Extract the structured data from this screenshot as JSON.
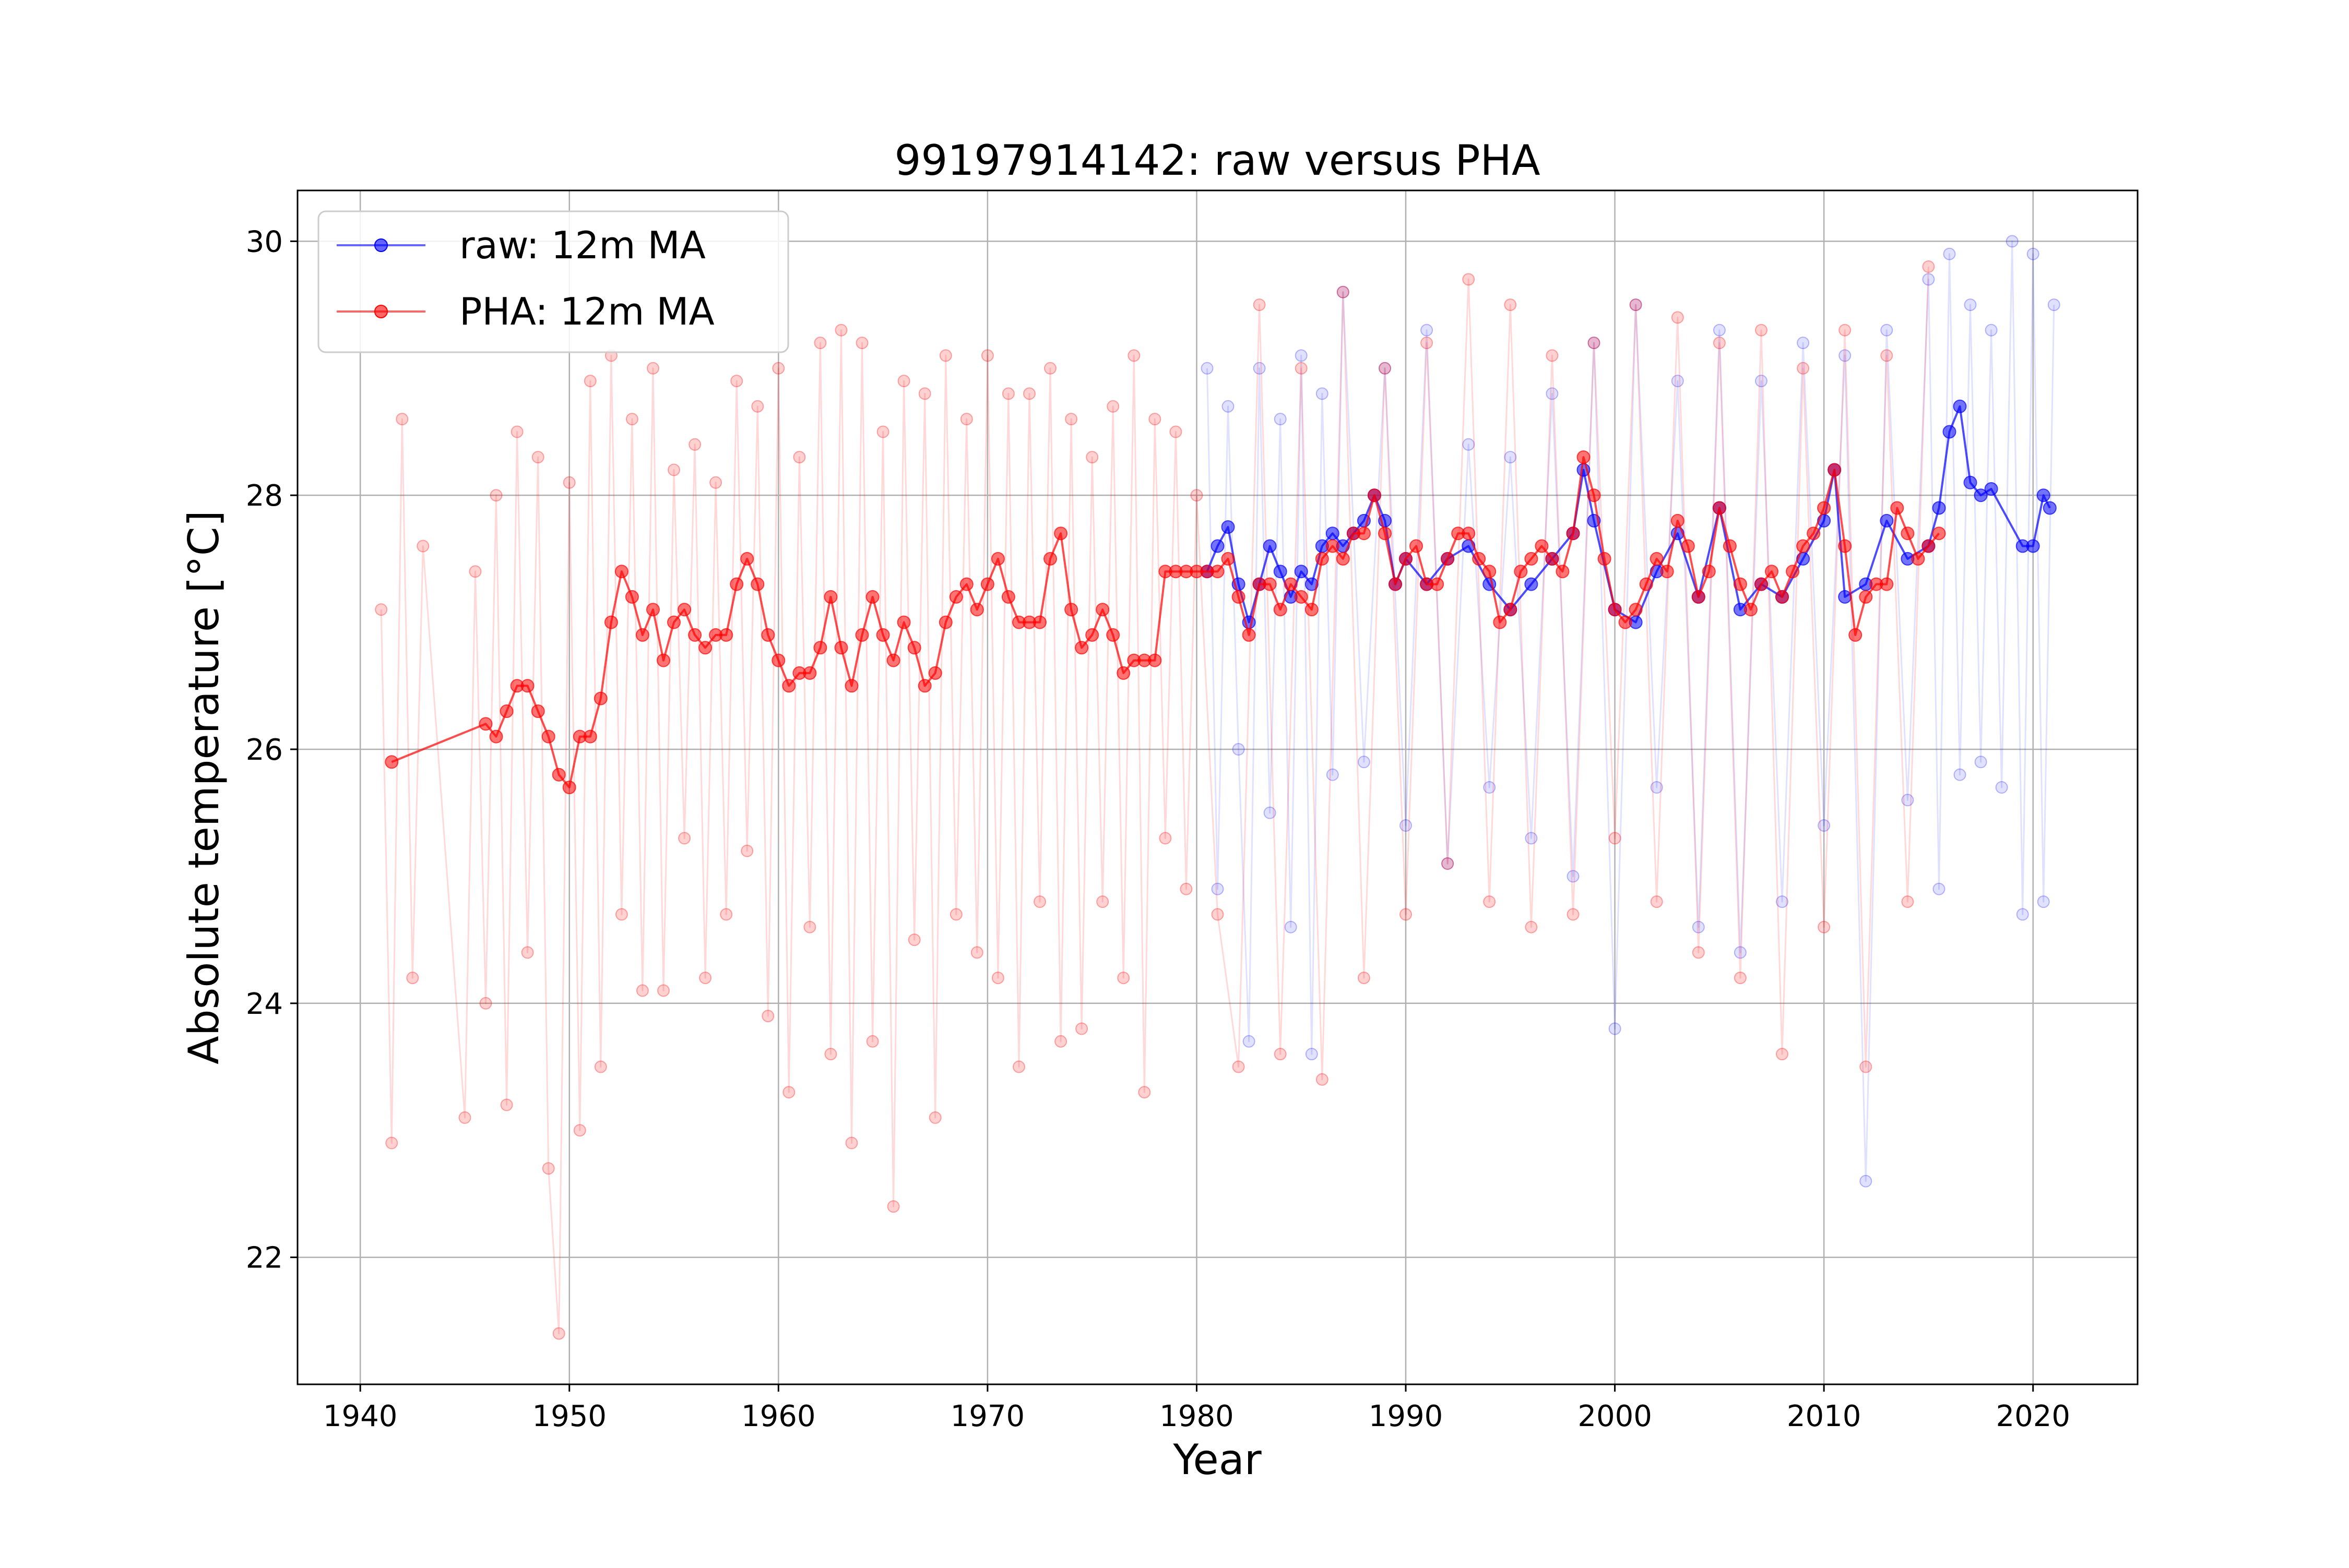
{
  "chart_data": {
    "type": "line",
    "title": "99197914142: raw versus PHA",
    "xlabel": "Year",
    "ylabel": "Absolute temperature [°C]",
    "xlim": [
      1937.0,
      2025.0
    ],
    "ylim": [
      21.0,
      30.4
    ],
    "x_ticks": [
      1940,
      1950,
      1960,
      1970,
      1980,
      1990,
      2000,
      2010,
      2020
    ],
    "y_ticks": [
      22,
      24,
      26,
      28,
      30
    ],
    "grid": true,
    "legend_position": "upper-left",
    "colors": {
      "raw": "#0000ff",
      "pha": "#ff0000"
    },
    "series": [
      {
        "name": "raw: 12m MA",
        "kind": "moving-average",
        "x": [
          1980.5,
          1981.0,
          1981.5,
          1982.0,
          1982.5,
          1983.0,
          1983.5,
          1984.0,
          1984.5,
          1985.0,
          1985.5,
          1986.0,
          1986.5,
          1987.0,
          1987.5,
          1988.0,
          1988.5,
          1989.0,
          1989.5,
          1990.0,
          1991.0,
          1992.0,
          1993.0,
          1994.0,
          1995.0,
          1996.0,
          1997.0,
          1998.0,
          1998.5,
          1999.0,
          2000.0,
          2001.0,
          2002.0,
          2003.0,
          2004.0,
          2005.0,
          2006.0,
          2007.0,
          2008.0,
          2009.0,
          2010.0,
          2010.5,
          2011.0,
          2012.0,
          2013.0,
          2014.0,
          2015.0,
          2015.5,
          2016.0,
          2016.5,
          2017.0,
          2017.5,
          2018.0,
          2019.5,
          2020.0,
          2020.5,
          2020.8
        ],
        "values": [
          27.4,
          27.6,
          27.75,
          27.3,
          27.0,
          27.3,
          27.6,
          27.4,
          27.2,
          27.4,
          27.3,
          27.6,
          27.7,
          27.6,
          27.7,
          27.8,
          28.0,
          27.8,
          27.3,
          27.5,
          27.3,
          27.5,
          27.6,
          27.3,
          27.1,
          27.3,
          27.5,
          27.7,
          28.2,
          27.8,
          27.1,
          27.0,
          27.4,
          27.7,
          27.2,
          27.9,
          27.1,
          27.3,
          27.2,
          27.5,
          27.8,
          28.2,
          27.2,
          27.3,
          27.8,
          27.5,
          27.6,
          27.9,
          28.5,
          28.7,
          28.1,
          28.0,
          28.05,
          27.6,
          27.6,
          28.0,
          27.9
        ]
      },
      {
        "name": "PHA: 12m MA",
        "kind": "moving-average",
        "x": [
          1941.5,
          1946.0,
          1946.5,
          1947.0,
          1947.5,
          1948.0,
          1948.5,
          1949.0,
          1949.5,
          1950.0,
          1950.5,
          1951.0,
          1951.5,
          1952.0,
          1952.5,
          1953.0,
          1953.5,
          1954.0,
          1954.5,
          1955.0,
          1955.5,
          1956.0,
          1956.5,
          1957.0,
          1957.5,
          1958.0,
          1958.5,
          1959.0,
          1959.5,
          1960.0,
          1960.5,
          1961.0,
          1961.5,
          1962.0,
          1962.5,
          1963.0,
          1963.5,
          1964.0,
          1964.5,
          1965.0,
          1965.5,
          1966.0,
          1966.5,
          1967.0,
          1967.5,
          1968.0,
          1968.5,
          1969.0,
          1969.5,
          1970.0,
          1970.5,
          1971.0,
          1971.5,
          1972.0,
          1972.5,
          1973.0,
          1973.5,
          1974.0,
          1974.5,
          1975.0,
          1975.5,
          1976.0,
          1976.5,
          1977.0,
          1977.5,
          1978.0,
          1978.5,
          1979.0,
          1979.5,
          1980.0,
          1980.5,
          1981.0,
          1981.5,
          1982.0,
          1982.5,
          1983.0,
          1983.5,
          1984.0,
          1984.5,
          1985.0,
          1985.5,
          1986.0,
          1986.5,
          1987.0,
          1987.5,
          1988.0,
          1988.5,
          1989.0,
          1989.5,
          1990.0,
          1990.5,
          1991.0,
          1991.5,
          1992.0,
          1992.5,
          1993.0,
          1993.5,
          1994.0,
          1994.5,
          1995.0,
          1995.5,
          1996.0,
          1996.5,
          1997.0,
          1997.5,
          1998.0,
          1998.5,
          1999.0,
          1999.5,
          2000.0,
          2000.5,
          2001.0,
          2001.5,
          2002.0,
          2002.5,
          2003.0,
          2003.5,
          2004.0,
          2004.5,
          2005.0,
          2005.5,
          2006.0,
          2006.5,
          2007.0,
          2007.5,
          2008.0,
          2008.5,
          2009.0,
          2009.5,
          2010.0,
          2010.5,
          2011.0,
          2011.5,
          2012.0,
          2012.5,
          2013.0,
          2013.5,
          2014.0,
          2014.5,
          2015.0,
          2015.5
        ],
        "values": [
          25.9,
          26.2,
          26.1,
          26.3,
          26.5,
          26.5,
          26.3,
          26.1,
          25.8,
          25.7,
          26.1,
          26.1,
          26.4,
          27.0,
          27.4,
          27.2,
          26.9,
          27.1,
          26.7,
          27.0,
          27.1,
          26.9,
          26.8,
          26.9,
          26.9,
          27.3,
          27.5,
          27.3,
          26.9,
          26.7,
          26.5,
          26.6,
          26.6,
          26.8,
          27.2,
          26.8,
          26.5,
          26.9,
          27.2,
          26.9,
          26.7,
          27.0,
          26.8,
          26.5,
          26.6,
          27.0,
          27.2,
          27.3,
          27.1,
          27.3,
          27.5,
          27.2,
          27.0,
          27.0,
          27.0,
          27.5,
          27.7,
          27.1,
          26.8,
          26.9,
          27.1,
          26.9,
          26.6,
          26.7,
          26.7,
          26.7,
          27.4,
          27.4,
          27.4,
          27.4,
          27.4,
          27.4,
          27.5,
          27.2,
          26.9,
          27.3,
          27.3,
          27.1,
          27.3,
          27.2,
          27.1,
          27.5,
          27.6,
          27.5,
          27.7,
          27.7,
          28.0,
          27.7,
          27.3,
          27.5,
          27.6,
          27.3,
          27.3,
          27.5,
          27.7,
          27.7,
          27.5,
          27.4,
          27.0,
          27.1,
          27.4,
          27.5,
          27.6,
          27.5,
          27.4,
          27.7,
          28.3,
          28.0,
          27.5,
          27.1,
          27.0,
          27.1,
          27.3,
          27.5,
          27.4,
          27.8,
          27.6,
          27.2,
          27.4,
          27.9,
          27.6,
          27.3,
          27.1,
          27.3,
          27.4,
          27.2,
          27.4,
          27.6,
          27.7,
          27.9,
          28.2,
          27.6,
          26.9,
          27.2,
          27.3,
          27.3,
          27.9,
          27.7,
          27.5,
          27.6,
          27.7
        ]
      },
      {
        "name": "",
        "kind": "monthly-raw",
        "x": [
          1980.5,
          1981.0,
          1981.5,
          1982.0,
          1982.5,
          1983.0,
          1983.5,
          1984.0,
          1984.5,
          1985.0,
          1985.5,
          1986.0,
          1986.5,
          1987.0,
          1988.0,
          1989.0,
          1990.0,
          1991.0,
          1992.0,
          1993.0,
          1994.0,
          1995.0,
          1996.0,
          1997.0,
          1998.0,
          1999.0,
          2000.0,
          2001.0,
          2002.0,
          2003.0,
          2004.0,
          2005.0,
          2006.0,
          2007.0,
          2008.0,
          2009.0,
          2010.0,
          2011.0,
          2012.0,
          2013.0,
          2014.0,
          2015.0,
          2015.5,
          2016.0,
          2016.5,
          2017.0,
          2017.5,
          2018.0,
          2018.5,
          2019.0,
          2019.5,
          2020.0,
          2020.5,
          2021.0
        ],
        "values": [
          29.0,
          24.9,
          28.7,
          26.0,
          23.7,
          29.0,
          25.5,
          28.6,
          24.6,
          29.1,
          23.6,
          28.8,
          25.8,
          29.6,
          25.9,
          29.0,
          25.4,
          29.3,
          25.1,
          28.4,
          25.7,
          28.3,
          25.3,
          28.8,
          25.0,
          29.2,
          23.8,
          29.5,
          25.7,
          28.9,
          24.6,
          29.3,
          24.4,
          28.9,
          24.8,
          29.2,
          25.4,
          29.1,
          22.6,
          29.3,
          25.6,
          29.7,
          24.9,
          29.9,
          25.8,
          29.5,
          25.9,
          29.3,
          25.7,
          30.0,
          24.7,
          29.9,
          24.8,
          29.5
        ]
      },
      {
        "name": "",
        "kind": "monthly-pha",
        "x": [
          1941.0,
          1941.5,
          1942.0,
          1942.5,
          1943.0,
          1945.0,
          1945.5,
          1946.0,
          1946.5,
          1947.0,
          1947.5,
          1948.0,
          1948.5,
          1949.0,
          1949.5,
          1950.0,
          1950.5,
          1951.0,
          1951.5,
          1952.0,
          1952.5,
          1953.0,
          1953.5,
          1954.0,
          1954.5,
          1955.0,
          1955.5,
          1956.0,
          1956.5,
          1957.0,
          1957.5,
          1958.0,
          1958.5,
          1959.0,
          1959.5,
          1960.0,
          1960.5,
          1961.0,
          1961.5,
          1962.0,
          1962.5,
          1963.0,
          1963.5,
          1964.0,
          1964.5,
          1965.0,
          1965.5,
          1966.0,
          1966.5,
          1967.0,
          1967.5,
          1968.0,
          1968.5,
          1969.0,
          1969.5,
          1970.0,
          1970.5,
          1971.0,
          1971.5,
          1972.0,
          1972.5,
          1973.0,
          1973.5,
          1974.0,
          1974.5,
          1975.0,
          1975.5,
          1976.0,
          1976.5,
          1977.0,
          1977.5,
          1978.0,
          1978.5,
          1979.0,
          1979.5,
          1980.0,
          1981.0,
          1982.0,
          1983.0,
          1984.0,
          1985.0,
          1986.0,
          1987.0,
          1988.0,
          1989.0,
          1990.0,
          1991.0,
          1992.0,
          1993.0,
          1994.0,
          1995.0,
          1996.0,
          1997.0,
          1998.0,
          1999.0,
          2000.0,
          2001.0,
          2002.0,
          2003.0,
          2004.0,
          2005.0,
          2006.0,
          2007.0,
          2008.0,
          2009.0,
          2010.0,
          2011.0,
          2012.0,
          2013.0,
          2014.0,
          2015.0
        ],
        "values": [
          27.1,
          22.9,
          28.6,
          24.2,
          27.6,
          23.1,
          27.4,
          24.0,
          28.0,
          23.2,
          28.5,
          24.4,
          28.3,
          22.7,
          21.4,
          28.1,
          23.0,
          28.9,
          23.5,
          29.1,
          24.7,
          28.6,
          24.1,
          29.0,
          24.1,
          28.2,
          25.3,
          28.4,
          24.2,
          28.1,
          24.7,
          28.9,
          25.2,
          28.7,
          23.9,
          29.0,
          23.3,
          28.3,
          24.6,
          29.2,
          23.6,
          29.3,
          22.9,
          29.2,
          23.7,
          28.5,
          22.4,
          28.9,
          24.5,
          28.8,
          23.1,
          29.1,
          24.7,
          28.6,
          24.4,
          29.1,
          24.2,
          28.8,
          23.5,
          28.8,
          24.8,
          29.0,
          23.7,
          28.6,
          23.8,
          28.3,
          24.8,
          28.7,
          24.2,
          29.1,
          23.3,
          28.6,
          25.3,
          28.5,
          24.9,
          28.0,
          24.7,
          23.5,
          29.5,
          23.6,
          29.0,
          23.4,
          29.6,
          24.2,
          29.0,
          24.7,
          29.2,
          25.1,
          29.7,
          24.8,
          29.5,
          24.6,
          29.1,
          24.7,
          29.2,
          25.3,
          29.5,
          24.8,
          29.4,
          24.4,
          29.2,
          24.2,
          29.3,
          23.6,
          29.0,
          24.6,
          29.3,
          23.5,
          29.1,
          24.8,
          29.8
        ]
      }
    ]
  }
}
